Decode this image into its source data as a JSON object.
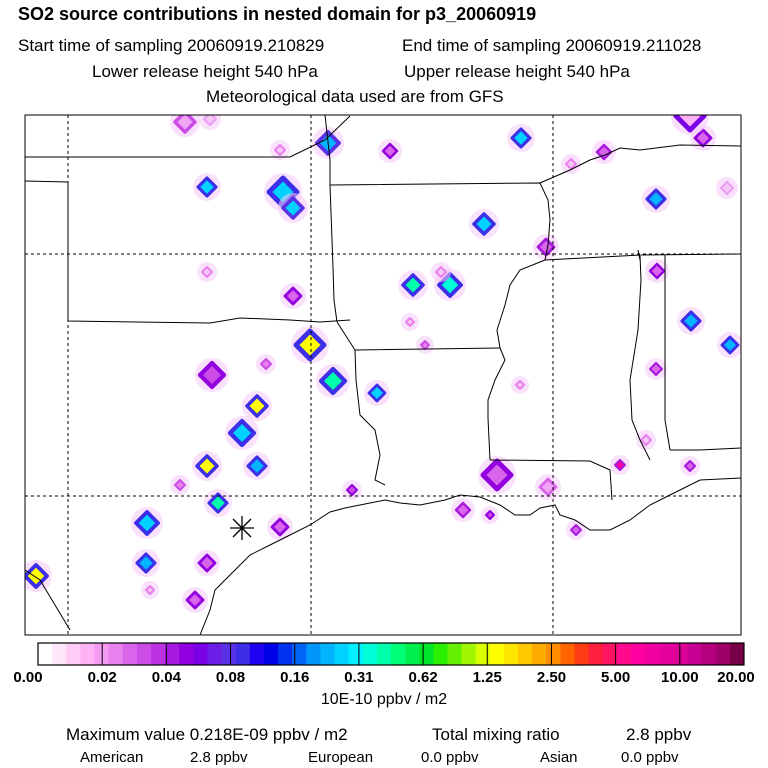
{
  "header": {
    "title": "SO2 source contributions in nested domain for p3_20060919",
    "start_time": "Start time of sampling 20060919.210829",
    "end_time": "End time of sampling 20060919.211028",
    "lower_release": "Lower release height  540 hPa",
    "upper_release": "Upper release height  540 hPa",
    "met_data": "Meteorological data used are from GFS"
  },
  "legend": {
    "tick_labels": [
      "0.00",
      "0.02",
      "0.04",
      "0.08",
      "0.16",
      "0.31",
      "0.62",
      "1.25",
      "2.50",
      "5.00",
      "10.00",
      "20.00"
    ],
    "units": "10E-10 ppbv / m2",
    "colors": [
      "#ffffff",
      "#ffe6fb",
      "#ffccf7",
      "#ffb3f5",
      "#f59af2",
      "#e880ee",
      "#d966ea",
      "#cc4de6",
      "#bb33e3",
      "#a61ae0",
      "#9200e0",
      "#7a00e6",
      "#6a1ee6",
      "#5a32e6",
      "#3d2ee8",
      "#2000f0",
      "#0000e8",
      "#0032f0",
      "#0064f5",
      "#0096fa",
      "#00b4ff",
      "#00d2ff",
      "#00f0ff",
      "#00ffd8",
      "#00ffaa",
      "#00ff78",
      "#00f050",
      "#00e628",
      "#28f000",
      "#64f000",
      "#a0f500",
      "#dcff00",
      "#ffff00",
      "#ffe600",
      "#ffc800",
      "#ffaa00",
      "#ff8c00",
      "#ff6400",
      "#ff3c14",
      "#ff1e3c",
      "#ff1464",
      "#ff0a8c",
      "#ff00a0",
      "#f000a0",
      "#e6009b",
      "#dc0096",
      "#c80091",
      "#b4007d",
      "#a00069",
      "#780046"
    ]
  },
  "summary": {
    "max_label": "Maximum value  0.218E-09 ppbv / m2",
    "total_label": "Total mixing ratio",
    "total_value": "2.8 ppbv",
    "american_label": "American",
    "american_value": "2.8 ppbv",
    "european_label": "European",
    "european_value": "0.0 ppbv",
    "asian_label": "Asian",
    "asian_value": "0.0 ppbv"
  },
  "map": {
    "release_marker": "asterisk"
  }
}
